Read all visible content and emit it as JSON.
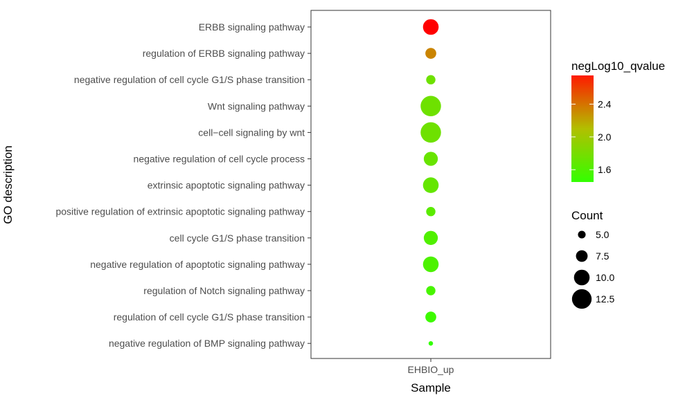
{
  "chart_data": {
    "type": "scatter",
    "xlabel": "Sample",
    "ylabel": "GO description",
    "x_categories": [
      "EHBIO_up"
    ],
    "categories": [
      "ERBB signaling pathway",
      "regulation of ERBB signaling pathway",
      "negative regulation of cell cycle G1/S phase transition",
      "Wnt signaling pathway",
      "cell−cell signaling by wnt",
      "negative regulation of cell cycle process",
      "extrinsic apoptotic signaling pathway",
      "positive regulation of extrinsic apoptotic signaling pathway",
      "cell cycle G1/S phase transition",
      "negative regulation of apoptotic signaling pathway",
      "regulation of Notch signaling pathway",
      "regulation of cell cycle G1/S phase transition",
      "negative regulation of BMP signaling pathway"
    ],
    "series": [
      {
        "x": "EHBIO_up",
        "count": [
          10,
          7,
          6,
          13,
          13,
          9,
          10,
          6,
          9,
          10,
          6,
          7,
          3
        ],
        "negLog10_qvalue": [
          2.75,
          2.3,
          1.75,
          1.75,
          1.75,
          1.72,
          1.7,
          1.65,
          1.6,
          1.58,
          1.55,
          1.5,
          1.45
        ]
      }
    ],
    "color_legend": {
      "title": "negLog10_qvalue",
      "ticks": [
        "2.4",
        "2.0",
        "1.6"
      ],
      "tick_values": [
        2.4,
        2.0,
        1.6
      ],
      "range": [
        1.45,
        2.75
      ],
      "low_color": "#33ff00",
      "mid_color": "#b2bf00",
      "high_color": "#ff0000"
    },
    "size_legend": {
      "title": "Count",
      "labels": [
        "5.0",
        "7.5",
        "10.0",
        "12.5"
      ],
      "values": [
        5.0,
        7.5,
        10.0,
        12.5
      ],
      "color": "#000000"
    },
    "grid": false,
    "legend_position": "right"
  }
}
